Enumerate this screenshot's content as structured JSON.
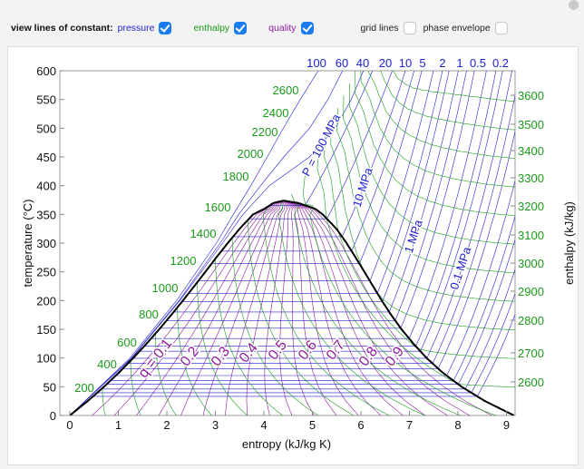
{
  "controls": {
    "label": "view lines of constant:",
    "pressure": {
      "label": "pressure",
      "checked": true,
      "color": "#2020d0"
    },
    "enthalpy": {
      "label": "enthalpy",
      "checked": true,
      "color": "#1a9a1a"
    },
    "quality": {
      "label": "quality",
      "checked": true,
      "color": "#8a1a9a"
    },
    "grid_lines": {
      "label": "grid lines",
      "checked": false
    },
    "phase_envelope": {
      "label": "phase envelope",
      "checked": false
    }
  },
  "chart_data": {
    "type": "line",
    "xlabel": "entropy (kJ/kg K)",
    "ylabel": "temperature (°C)",
    "y2label": "enthalpy (kJ/kg)",
    "xlim": [
      0,
      9.2
    ],
    "ylim": [
      0,
      600
    ],
    "xticks": [
      "0",
      "1",
      "2",
      "3",
      "4",
      "5",
      "6",
      "7",
      "8",
      "9"
    ],
    "yticks": [
      "0",
      "50",
      "100",
      "150",
      "200",
      "250",
      "300",
      "350",
      "400",
      "450",
      "500",
      "550",
      "600"
    ],
    "grid": false,
    "colors": {
      "pressure": "#2020d0",
      "enthalpy": "#1a9a1a",
      "quality": "#8a1a9a",
      "saturation_dome": "#000000"
    },
    "pressure_top_labels": [
      "100",
      "60",
      "40",
      "20",
      "10",
      "5",
      "2",
      "1",
      "0.5",
      "0.2"
    ],
    "pressure_line_labels": [
      "P = 100 MPa",
      "10 MPa",
      "1 MPa",
      "0.1 MPa"
    ],
    "pressures_MPa": [
      100,
      60,
      40,
      20,
      15,
      10,
      7,
      5,
      3,
      2,
      1.5,
      1,
      0.7,
      0.5,
      0.3,
      0.2,
      0.15,
      0.1,
      0.07,
      0.05,
      0.03,
      0.02,
      0.015,
      0.01,
      0.007,
      0.005
    ],
    "enthalpy_left_labels": [
      "200",
      "400",
      "600",
      "800",
      "1000",
      "1200",
      "1400",
      "1600",
      "1800",
      "2000",
      "2200",
      "2400",
      "2600"
    ],
    "enthalpy_right_labels": [
      "3600",
      "3500",
      "3400",
      "3300",
      "3200",
      "3100",
      "3000",
      "2900",
      "2800",
      "2700",
      "2600"
    ],
    "enthalpy_values": [
      200,
      400,
      600,
      800,
      1000,
      1200,
      1400,
      1600,
      1800,
      2000,
      2200,
      2400,
      2600,
      2700,
      2800,
      2900,
      3000,
      3100,
      3200,
      3300,
      3400,
      3500,
      3600
    ],
    "quality_labels": [
      "q = 0.1",
      "0.2",
      "0.3",
      "0.4",
      "0.5",
      "0.6",
      "0.7",
      "0.8",
      "0.9"
    ],
    "quality_values_step": 0.05
  }
}
